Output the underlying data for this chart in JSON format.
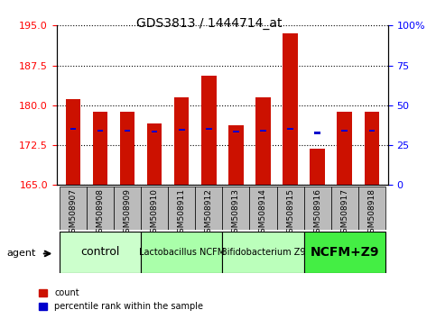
{
  "title": "GDS3813 / 1444714_at",
  "samples": [
    "GSM508907",
    "GSM508908",
    "GSM508909",
    "GSM508910",
    "GSM508911",
    "GSM508912",
    "GSM508913",
    "GSM508914",
    "GSM508915",
    "GSM508916",
    "GSM508917",
    "GSM508918"
  ],
  "bar_heights": [
    181.2,
    178.8,
    178.8,
    176.5,
    181.5,
    185.5,
    176.3,
    181.5,
    193.5,
    171.8,
    178.8,
    178.8
  ],
  "blue_values": [
    175.5,
    175.3,
    175.3,
    175.1,
    175.4,
    175.5,
    175.0,
    175.3,
    175.6,
    174.8,
    175.2,
    175.3
  ],
  "ylim_left": [
    165,
    195
  ],
  "ylim_right": [
    0,
    100
  ],
  "yticks_left": [
    165,
    172.5,
    180,
    187.5,
    195
  ],
  "yticks_right": [
    0,
    25,
    50,
    75,
    100
  ],
  "bar_color": "#cc1100",
  "blue_color": "#0000cc",
  "groups": [
    {
      "label": "control",
      "start": 0,
      "end": 3,
      "color": "#ccffcc",
      "fontsize": 9,
      "bold": false
    },
    {
      "label": "Lactobacillus NCFM",
      "start": 3,
      "end": 6,
      "color": "#aaffaa",
      "fontsize": 7,
      "bold": false
    },
    {
      "label": "Bifidobacterium Z9",
      "start": 6,
      "end": 9,
      "color": "#bbffbb",
      "fontsize": 7,
      "bold": false
    },
    {
      "label": "NCFM+Z9",
      "start": 9,
      "end": 12,
      "color": "#44ee44",
      "fontsize": 10,
      "bold": true
    }
  ],
  "bar_width": 0.55,
  "agent_label": "agent",
  "legend_count": "count",
  "legend_percentile": "percentile rank within the sample"
}
